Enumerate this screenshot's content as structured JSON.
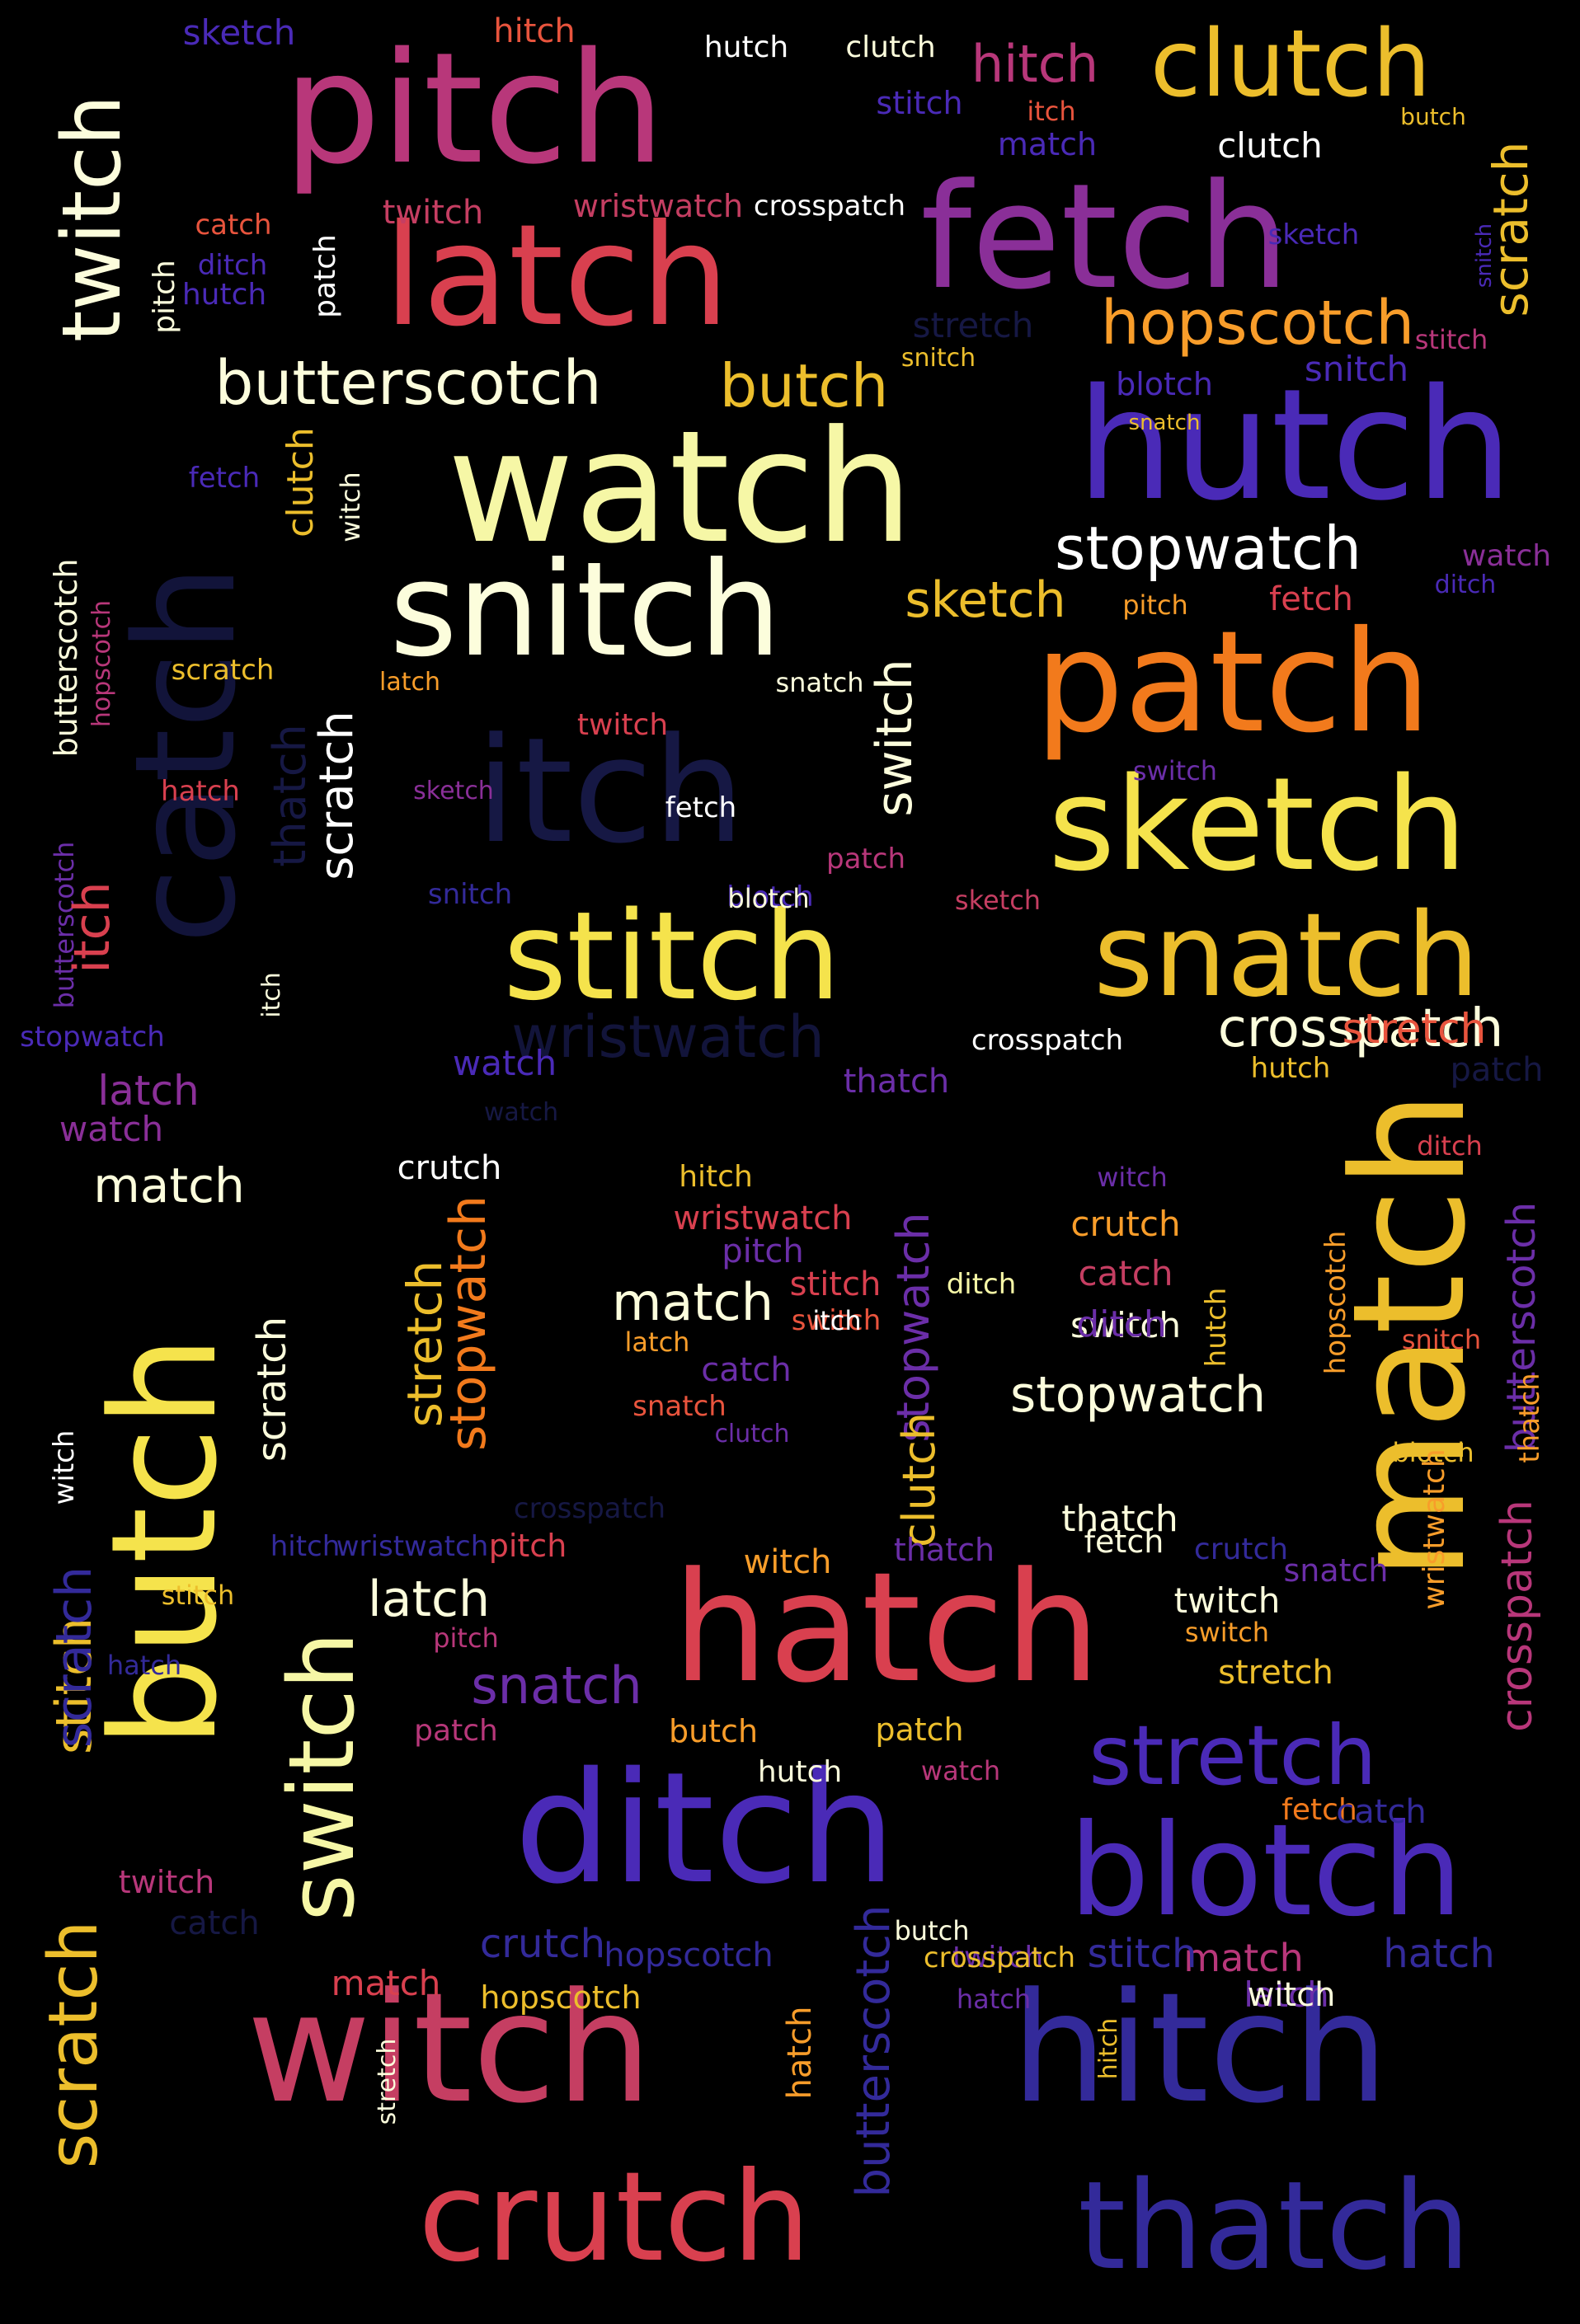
{
  "colors": {
    "background": "#000000",
    "pale_yellow": "#f6f7a6",
    "cream": "#fcfddc",
    "white": "#ffffff",
    "gold": "#ecbe2c",
    "yellow": "#f5e34c",
    "orange": "#f27a1c",
    "light_orange": "#f89d2a",
    "red_orange": "#e8543d",
    "red": "#d9404f",
    "rose": "#c53e62",
    "magenta": "#b8377a",
    "purple": "#8a2f98",
    "violet": "#6b2ea8",
    "indigo": "#4a2ab7",
    "deep_indigo": "#332a9a",
    "navy": "#161844",
    "dark_navy": "#12143a"
  },
  "words": [
    {
      "text": "pitch",
      "color": "magenta"
    },
    {
      "text": "latch",
      "color": "red"
    },
    {
      "text": "fetch",
      "color": "purple"
    },
    {
      "text": "clutch",
      "color": "gold"
    },
    {
      "text": "watch",
      "color": "pale_yellow"
    },
    {
      "text": "hutch",
      "color": "indigo"
    },
    {
      "text": "catch",
      "color": "dark_navy"
    },
    {
      "text": "snitch",
      "color": "cream"
    },
    {
      "text": "patch",
      "color": "orange"
    },
    {
      "text": "itch",
      "color": "navy"
    },
    {
      "text": "sketch",
      "color": "yellow"
    },
    {
      "text": "stitch",
      "color": "yellow"
    },
    {
      "text": "snatch",
      "color": "gold"
    },
    {
      "text": "twitch",
      "color": "cream"
    },
    {
      "text": "butterscotch",
      "color": "cream"
    },
    {
      "text": "butch",
      "color": "gold"
    },
    {
      "text": "hopscotch",
      "color": "light_orange"
    },
    {
      "text": "stopwatch",
      "color": "white"
    },
    {
      "text": "crosspatch",
      "color": "cream"
    },
    {
      "text": "wristwatch",
      "color": "dark_navy"
    },
    {
      "text": "match",
      "color": "gold"
    },
    {
      "text": "butch",
      "color": "yellow"
    },
    {
      "text": "hatch",
      "color": "red"
    },
    {
      "text": "ditch",
      "color": "indigo"
    },
    {
      "text": "blotch",
      "color": "indigo"
    },
    {
      "text": "witch",
      "color": "rose"
    },
    {
      "text": "hitch",
      "color": "deep_indigo"
    },
    {
      "text": "crutch",
      "color": "red"
    },
    {
      "text": "thatch",
      "color": "deep_indigo"
    },
    {
      "text": "stretch",
      "color": "indigo"
    },
    {
      "text": "switch",
      "color": "pale_yellow"
    },
    {
      "text": "scratch",
      "color": "gold"
    },
    {
      "text": "stitch",
      "color": "gold"
    },
    {
      "text": "sketch",
      "color": "indigo"
    },
    {
      "text": "hitch",
      "color": "red_orange"
    },
    {
      "text": "hutch",
      "color": "white"
    },
    {
      "text": "clutch",
      "color": "cream"
    },
    {
      "text": "hitch",
      "color": "magenta"
    },
    {
      "text": "stitch",
      "color": "indigo"
    },
    {
      "text": "itch",
      "color": "red_orange"
    },
    {
      "text": "butch",
      "color": "gold"
    },
    {
      "text": "match",
      "color": "indigo"
    },
    {
      "text": "clutch",
      "color": "white"
    },
    {
      "text": "scratch",
      "color": "gold"
    },
    {
      "text": "snitch",
      "color": "indigo"
    },
    {
      "text": "wristwatch",
      "color": "rose"
    },
    {
      "text": "crosspatch",
      "color": "white"
    },
    {
      "text": "twitch",
      "color": "rose"
    },
    {
      "text": "sketch",
      "color": "indigo"
    },
    {
      "text": "catch",
      "color": "red_orange"
    },
    {
      "text": "ditch",
      "color": "indigo"
    },
    {
      "text": "hutch",
      "color": "indigo"
    },
    {
      "text": "patch",
      "color": "white"
    },
    {
      "text": "pitch",
      "color": "cream"
    },
    {
      "text": "stretch",
      "color": "navy"
    },
    {
      "text": "snitch",
      "color": "gold"
    },
    {
      "text": "stitch",
      "color": "magenta"
    },
    {
      "text": "snitch",
      "color": "indigo"
    },
    {
      "text": "blotch",
      "color": "indigo"
    },
    {
      "text": "snatch",
      "color": "gold"
    },
    {
      "text": "fetch",
      "color": "indigo"
    },
    {
      "text": "clutch",
      "color": "gold"
    },
    {
      "text": "witch",
      "color": "cream"
    },
    {
      "text": "watch",
      "color": "purple"
    },
    {
      "text": "ditch",
      "color": "indigo"
    },
    {
      "text": "sketch",
      "color": "gold"
    },
    {
      "text": "pitch",
      "color": "light_orange"
    },
    {
      "text": "fetch",
      "color": "red"
    },
    {
      "text": "butterscotch",
      "color": "cream"
    },
    {
      "text": "hopscotch",
      "color": "magenta"
    },
    {
      "text": "scratch",
      "color": "gold"
    },
    {
      "text": "latch",
      "color": "light_orange"
    },
    {
      "text": "butterscotch",
      "color": "violet"
    },
    {
      "text": "snatch",
      "color": "cream"
    },
    {
      "text": "twitch",
      "color": "red"
    },
    {
      "text": "scratch",
      "color": "white"
    },
    {
      "text": "switch",
      "color": "cream"
    },
    {
      "text": "thatch",
      "color": "navy"
    },
    {
      "text": "hatch",
      "color": "red"
    },
    {
      "text": "sketch",
      "color": "purple"
    },
    {
      "text": "fetch",
      "color": "white"
    },
    {
      "text": "switch",
      "color": "violet"
    },
    {
      "text": "blotch",
      "color": "indigo"
    },
    {
      "text": "snitch",
      "color": "deep_indigo"
    },
    {
      "text": "blotch",
      "color": "cream"
    },
    {
      "text": "patch",
      "color": "magenta"
    },
    {
      "text": "sketch",
      "color": "rose"
    },
    {
      "text": "itch",
      "color": "red"
    },
    {
      "text": "stopwatch",
      "color": "indigo"
    },
    {
      "text": "itch",
      "color": "cream"
    },
    {
      "text": "watch",
      "color": "indigo"
    },
    {
      "text": "crosspatch",
      "color": "white"
    },
    {
      "text": "stretch",
      "color": "red_orange"
    },
    {
      "text": "hutch",
      "color": "gold"
    },
    {
      "text": "patch",
      "color": "navy"
    },
    {
      "text": "latch",
      "color": "purple"
    },
    {
      "text": "watch",
      "color": "navy"
    },
    {
      "text": "thatch",
      "color": "violet"
    },
    {
      "text": "watch",
      "color": "purple"
    },
    {
      "text": "match",
      "color": "cream"
    },
    {
      "text": "crutch",
      "color": "white"
    },
    {
      "text": "hitch",
      "color": "gold"
    },
    {
      "text": "witch",
      "color": "violet"
    },
    {
      "text": "ditch",
      "color": "red"
    },
    {
      "text": "wristwatch",
      "color": "red"
    },
    {
      "text": "pitch",
      "color": "violet"
    },
    {
      "text": "crutch",
      "color": "light_orange"
    },
    {
      "text": "stitch",
      "color": "red"
    },
    {
      "text": "ditch",
      "color": "pale_yellow"
    },
    {
      "text": "catch",
      "color": "rose"
    },
    {
      "text": "switch",
      "color": "red_orange"
    },
    {
      "text": "switch",
      "color": "cream"
    },
    {
      "text": "match",
      "color": "cream"
    },
    {
      "text": "itch",
      "color": "white"
    },
    {
      "text": "ditch",
      "color": "violet"
    },
    {
      "text": "latch",
      "color": "light_orange"
    },
    {
      "text": "catch",
      "color": "violet"
    },
    {
      "text": "snatch",
      "color": "red_orange"
    },
    {
      "text": "clutch",
      "color": "violet"
    },
    {
      "text": "stopwatch",
      "color": "cream"
    },
    {
      "text": "stretch",
      "color": "gold"
    },
    {
      "text": "stopwatch",
      "color": "orange"
    },
    {
      "text": "scratch",
      "color": "cream"
    },
    {
      "text": "stopwatch",
      "color": "violet"
    },
    {
      "text": "clutch",
      "color": "gold"
    },
    {
      "text": "hutch",
      "color": "gold"
    },
    {
      "text": "hopscotch",
      "color": "light_orange"
    },
    {
      "text": "snitch",
      "color": "red_orange"
    },
    {
      "text": "butterscotch",
      "color": "violet"
    },
    {
      "text": "thatch",
      "color": "light_orange"
    },
    {
      "text": "blotch",
      "color": "gold"
    },
    {
      "text": "witch",
      "color": "white"
    },
    {
      "text": "thatch",
      "color": "cream"
    },
    {
      "text": "fetch",
      "color": "cream"
    },
    {
      "text": "wristwatch",
      "color": "light_orange"
    },
    {
      "text": "snatch",
      "color": "violet"
    },
    {
      "text": "crosspatch",
      "color": "navy"
    },
    {
      "text": "hitch",
      "color": "deep_indigo"
    },
    {
      "text": "wristwatch",
      "color": "deep_indigo"
    },
    {
      "text": "pitch",
      "color": "red"
    },
    {
      "text": "witch",
      "color": "light_orange"
    },
    {
      "text": "thatch",
      "color": "violet"
    },
    {
      "text": "crutch",
      "color": "deep_indigo"
    },
    {
      "text": "stitch",
      "color": "gold"
    },
    {
      "text": "pitch",
      "color": "magenta"
    },
    {
      "text": "latch",
      "color": "cream"
    },
    {
      "text": "twitch",
      "color": "cream"
    },
    {
      "text": "switch",
      "color": "light_orange"
    },
    {
      "text": "crosspatch",
      "color": "magenta"
    },
    {
      "text": "scratch",
      "color": "deep_indigo"
    },
    {
      "text": "hatch",
      "color": "deep_indigo"
    },
    {
      "text": "snatch",
      "color": "violet"
    },
    {
      "text": "stretch",
      "color": "gold"
    },
    {
      "text": "patch",
      "color": "magenta"
    },
    {
      "text": "butch",
      "color": "light_orange"
    },
    {
      "text": "patch",
      "color": "gold"
    },
    {
      "text": "hutch",
      "color": "cream"
    },
    {
      "text": "watch",
      "color": "magenta"
    },
    {
      "text": "fetch",
      "color": "orange"
    },
    {
      "text": "catch",
      "color": "deep_indigo"
    },
    {
      "text": "twitch",
      "color": "magenta"
    },
    {
      "text": "catch",
      "color": "navy"
    },
    {
      "text": "match",
      "color": "red"
    },
    {
      "text": "crutch",
      "color": "deep_indigo"
    },
    {
      "text": "hopscotch",
      "color": "deep_indigo"
    },
    {
      "text": "butch",
      "color": "cream"
    },
    {
      "text": "twitch",
      "color": "violet"
    },
    {
      "text": "match",
      "color": "magenta"
    },
    {
      "text": "crosspatch",
      "color": "gold"
    },
    {
      "text": "hopscotch",
      "color": "gold"
    },
    {
      "text": "stretch",
      "color": "cream"
    },
    {
      "text": "hatch",
      "color": "light_orange"
    },
    {
      "text": "butterscotch",
      "color": "deep_indigo"
    },
    {
      "text": "hatch",
      "color": "violet"
    },
    {
      "text": "hitch",
      "color": "gold"
    },
    {
      "text": "latch",
      "color": "violet"
    },
    {
      "text": "stitch",
      "color": "deep_indigo"
    },
    {
      "text": "hatch",
      "color": "deep_indigo"
    },
    {
      "text": "witch",
      "color": "cream"
    }
  ]
}
